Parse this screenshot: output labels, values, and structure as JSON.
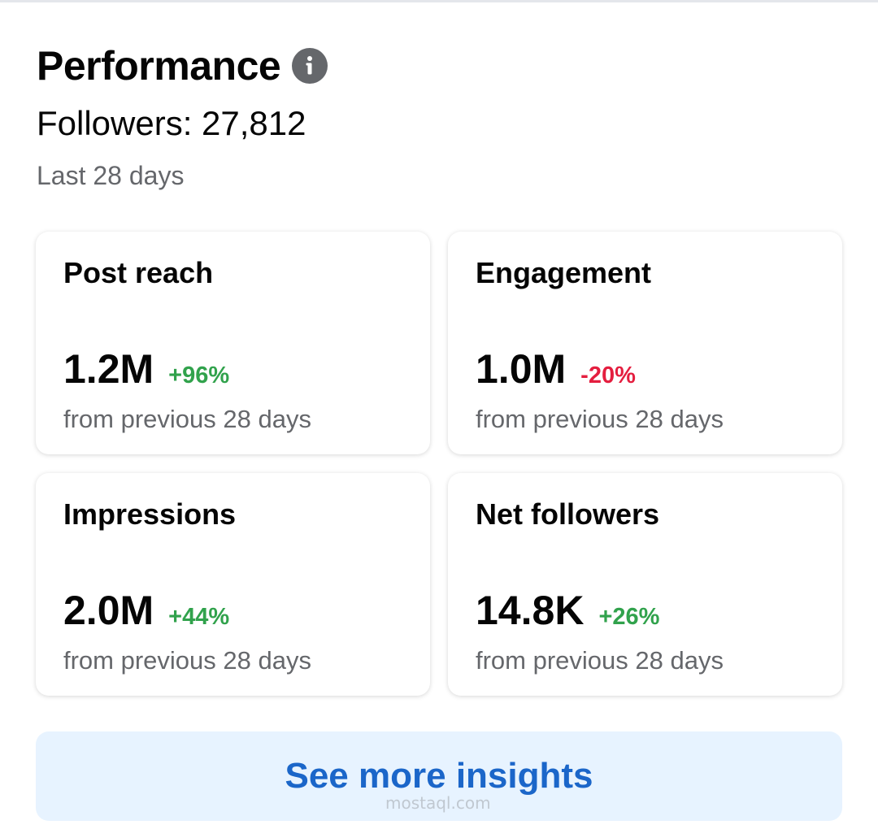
{
  "header": {
    "title": "Performance",
    "info_icon": "info-icon",
    "followers": "Followers: 27,812",
    "period": "Last 28 days"
  },
  "metrics": [
    {
      "title": "Post reach",
      "value": "1.2M",
      "change": "+96%",
      "change_color": "#31a24c",
      "sub": "from previous 28 days"
    },
    {
      "title": "Engagement",
      "value": "1.0M",
      "change": "-20%",
      "change_color": "#e41e3f",
      "sub": "from previous 28 days"
    },
    {
      "title": "Impressions",
      "value": "2.0M",
      "change": "+44%",
      "change_color": "#31a24c",
      "sub": "from previous 28 days"
    },
    {
      "title": "Net followers",
      "value": "14.8K",
      "change": "+26%",
      "change_color": "#31a24c",
      "sub": "from previous 28 days"
    }
  ],
  "cta": {
    "label": "See more insights"
  },
  "watermark": "mostaql.com"
}
